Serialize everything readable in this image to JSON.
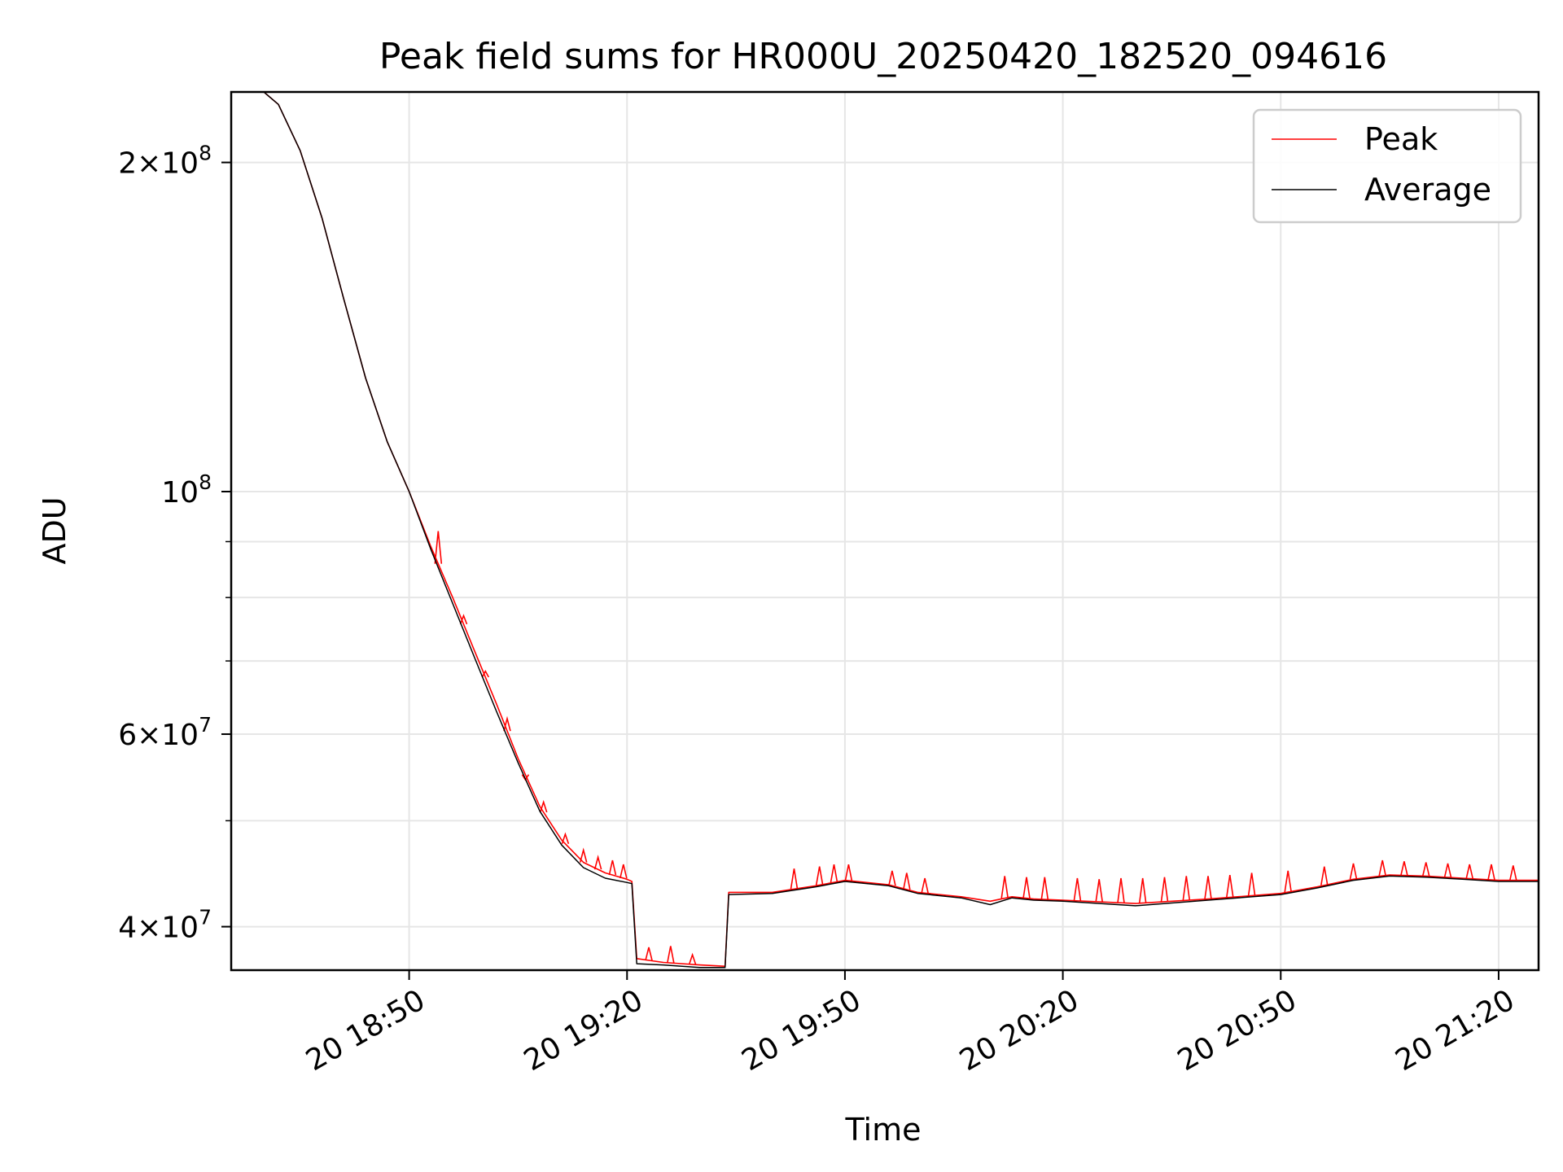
{
  "chart_data": {
    "type": "line",
    "title": "Peak field sums for HR000U_20250420_182520_094616",
    "xlabel": "Time",
    "ylabel": "ADU",
    "yscale": "log",
    "xlim": [
      "2025-04-20 18:25:30",
      "2025-04-20 21:25:30"
    ],
    "ylim": [
      36500000,
      232000000
    ],
    "x_ticks": [
      "20 18:50",
      "20 19:20",
      "20 19:50",
      "20 20:20",
      "20 20:50",
      "20 21:20"
    ],
    "y_ticks_major": [
      {
        "value": 200000000,
        "mantissa": "2",
        "base": "10",
        "exponent": "8"
      },
      {
        "value": 100000000,
        "mantissa": "",
        "base": "10",
        "exponent": "8"
      },
      {
        "value": 60000000,
        "mantissa": "6",
        "base": "10",
        "exponent": "7"
      },
      {
        "value": 40000000,
        "mantissa": "4",
        "base": "10",
        "exponent": "7"
      }
    ],
    "y_ticks_minor": [
      90000000,
      80000000,
      70000000,
      50000000
    ],
    "grid": true,
    "legend_position": "upper right",
    "series": [
      {
        "name": "Peak",
        "color": "#ff0000",
        "points": [
          [
            "2025-04-20 18:25:30",
            232000000
          ],
          [
            "2025-04-20 18:30:00",
            232000000
          ],
          [
            "2025-04-20 18:32:00",
            226000000
          ],
          [
            "2025-04-20 18:35:00",
            205000000
          ],
          [
            "2025-04-20 18:38:00",
            178000000
          ],
          [
            "2025-04-20 18:41:00",
            150000000
          ],
          [
            "2025-04-20 18:44:00",
            127000000
          ],
          [
            "2025-04-20 18:47:00",
            111000000
          ],
          [
            "2025-04-20 18:50:00",
            100000000
          ],
          [
            "2025-04-20 18:53:00",
            89000000
          ],
          [
            "2025-04-20 18:56:00",
            80000000
          ],
          [
            "2025-04-20 18:59:00",
            71500000
          ],
          [
            "2025-04-20 19:02:00",
            64000000
          ],
          [
            "2025-04-20 19:05:00",
            57000000
          ],
          [
            "2025-04-20 19:08:00",
            51500000
          ],
          [
            "2025-04-20 19:11:00",
            48000000
          ],
          [
            "2025-04-20 19:14:00",
            45800000
          ],
          [
            "2025-04-20 19:17:00",
            44800000
          ],
          [
            "2025-04-20 19:20:00",
            44200000
          ],
          [
            "2025-04-20 19:20:40",
            44000000
          ],
          [
            "2025-04-20 19:21:20",
            37400000
          ],
          [
            "2025-04-20 19:25:00",
            37100000
          ],
          [
            "2025-04-20 19:30:00",
            36900000
          ],
          [
            "2025-04-20 19:33:30",
            36800000
          ],
          [
            "2025-04-20 19:34:00",
            43000000
          ],
          [
            "2025-04-20 19:40:00",
            43000000
          ],
          [
            "2025-04-20 19:46:00",
            43600000
          ],
          [
            "2025-04-20 19:50:00",
            44100000
          ],
          [
            "2025-04-20 19:56:00",
            43700000
          ],
          [
            "2025-04-20 20:00:00",
            43000000
          ],
          [
            "2025-04-20 20:06:00",
            42600000
          ],
          [
            "2025-04-20 20:10:00",
            42200000
          ],
          [
            "2025-04-20 20:13:00",
            42600000
          ],
          [
            "2025-04-20 20:16:00",
            42400000
          ],
          [
            "2025-04-20 20:20:00",
            42300000
          ],
          [
            "2025-04-20 20:30:00",
            42000000
          ],
          [
            "2025-04-20 20:40:00",
            42400000
          ],
          [
            "2025-04-20 20:50:00",
            42900000
          ],
          [
            "2025-04-20 20:55:00",
            43500000
          ],
          [
            "2025-04-20 21:00:00",
            44200000
          ],
          [
            "2025-04-20 21:05:00",
            44600000
          ],
          [
            "2025-04-20 21:10:00",
            44500000
          ],
          [
            "2025-04-20 21:15:00",
            44300000
          ],
          [
            "2025-04-20 21:20:00",
            44100000
          ],
          [
            "2025-04-20 21:25:30",
            44100000
          ]
        ],
        "spikes": [
          [
            "2025-04-20 18:54:00",
            92000000
          ],
          [
            "2025-04-20 18:57:30",
            77000000
          ],
          [
            "2025-04-20 19:00:30",
            68500000
          ],
          [
            "2025-04-20 19:03:30",
            62000000
          ],
          [
            "2025-04-20 19:06:00",
            54500000
          ],
          [
            "2025-04-20 19:08:30",
            52000000
          ],
          [
            "2025-04-20 19:11:30",
            48600000
          ],
          [
            "2025-04-20 19:14:00",
            47000000
          ],
          [
            "2025-04-20 19:16:00",
            46300000
          ],
          [
            "2025-04-20 19:18:00",
            46000000
          ],
          [
            "2025-04-20 19:19:30",
            45600000
          ],
          [
            "2025-04-20 19:23:00",
            38300000
          ],
          [
            "2025-04-20 19:26:00",
            38400000
          ],
          [
            "2025-04-20 19:29:00",
            37700000
          ],
          [
            "2025-04-20 19:43:00",
            45200000
          ],
          [
            "2025-04-20 19:46:30",
            45400000
          ],
          [
            "2025-04-20 19:48:30",
            45600000
          ],
          [
            "2025-04-20 19:50:30",
            45600000
          ],
          [
            "2025-04-20 19:56:30",
            45000000
          ],
          [
            "2025-04-20 19:58:30",
            44800000
          ],
          [
            "2025-04-20 20:01:00",
            44300000
          ],
          [
            "2025-04-20 20:12:00",
            44500000
          ],
          [
            "2025-04-20 20:15:00",
            44400000
          ],
          [
            "2025-04-20 20:17:30",
            44400000
          ],
          [
            "2025-04-20 20:22:00",
            44300000
          ],
          [
            "2025-04-20 20:25:00",
            44200000
          ],
          [
            "2025-04-20 20:28:00",
            44300000
          ],
          [
            "2025-04-20 20:31:00",
            44300000
          ],
          [
            "2025-04-20 20:34:00",
            44400000
          ],
          [
            "2025-04-20 20:37:00",
            44500000
          ],
          [
            "2025-04-20 20:40:00",
            44500000
          ],
          [
            "2025-04-20 20:43:00",
            44600000
          ],
          [
            "2025-04-20 20:46:00",
            44800000
          ],
          [
            "2025-04-20 20:51:00",
            45000000
          ],
          [
            "2025-04-20 20:56:00",
            45400000
          ],
          [
            "2025-04-20 21:00:00",
            45700000
          ],
          [
            "2025-04-20 21:04:00",
            46000000
          ],
          [
            "2025-04-20 21:07:00",
            45900000
          ],
          [
            "2025-04-20 21:10:00",
            45800000
          ],
          [
            "2025-04-20 21:13:00",
            45700000
          ],
          [
            "2025-04-20 21:16:00",
            45600000
          ],
          [
            "2025-04-20 21:19:00",
            45600000
          ],
          [
            "2025-04-20 21:22:00",
            45500000
          ]
        ]
      },
      {
        "name": "Average",
        "color": "#000000",
        "points": [
          [
            "2025-04-20 18:25:30",
            232000000
          ],
          [
            "2025-04-20 18:30:00",
            232000000
          ],
          [
            "2025-04-20 18:32:00",
            226000000
          ],
          [
            "2025-04-20 18:35:00",
            205000000
          ],
          [
            "2025-04-20 18:38:00",
            178000000
          ],
          [
            "2025-04-20 18:41:00",
            150000000
          ],
          [
            "2025-04-20 18:44:00",
            127000000
          ],
          [
            "2025-04-20 18:47:00",
            111000000
          ],
          [
            "2025-04-20 18:50:00",
            100000000
          ],
          [
            "2025-04-20 18:53:00",
            88500000
          ],
          [
            "2025-04-20 18:56:00",
            79000000
          ],
          [
            "2025-04-20 18:59:00",
            70500000
          ],
          [
            "2025-04-20 19:02:00",
            63000000
          ],
          [
            "2025-04-20 19:05:00",
            56500000
          ],
          [
            "2025-04-20 19:08:00",
            51000000
          ],
          [
            "2025-04-20 19:11:00",
            47500000
          ],
          [
            "2025-04-20 19:14:00",
            45300000
          ],
          [
            "2025-04-20 19:17:00",
            44300000
          ],
          [
            "2025-04-20 19:20:00",
            43900000
          ],
          [
            "2025-04-20 19:20:40",
            43800000
          ],
          [
            "2025-04-20 19:21:20",
            37000000
          ],
          [
            "2025-04-20 19:25:00",
            36900000
          ],
          [
            "2025-04-20 19:30:00",
            36700000
          ],
          [
            "2025-04-20 19:33:30",
            36700000
          ],
          [
            "2025-04-20 19:34:00",
            42800000
          ],
          [
            "2025-04-20 19:40:00",
            42900000
          ],
          [
            "2025-04-20 19:46:00",
            43500000
          ],
          [
            "2025-04-20 19:50:00",
            44000000
          ],
          [
            "2025-04-20 19:56:00",
            43600000
          ],
          [
            "2025-04-20 20:00:00",
            42900000
          ],
          [
            "2025-04-20 20:06:00",
            42500000
          ],
          [
            "2025-04-20 20:10:00",
            41900000
          ],
          [
            "2025-04-20 20:13:00",
            42500000
          ],
          [
            "2025-04-20 20:16:00",
            42300000
          ],
          [
            "2025-04-20 20:20:00",
            42200000
          ],
          [
            "2025-04-20 20:30:00",
            41800000
          ],
          [
            "2025-04-20 20:40:00",
            42300000
          ],
          [
            "2025-04-20 20:50:00",
            42800000
          ],
          [
            "2025-04-20 20:55:00",
            43400000
          ],
          [
            "2025-04-20 21:00:00",
            44100000
          ],
          [
            "2025-04-20 21:05:00",
            44500000
          ],
          [
            "2025-04-20 21:10:00",
            44400000
          ],
          [
            "2025-04-20 21:15:00",
            44200000
          ],
          [
            "2025-04-20 21:20:00",
            44000000
          ],
          [
            "2025-04-20 21:25:30",
            44000000
          ]
        ]
      }
    ]
  }
}
